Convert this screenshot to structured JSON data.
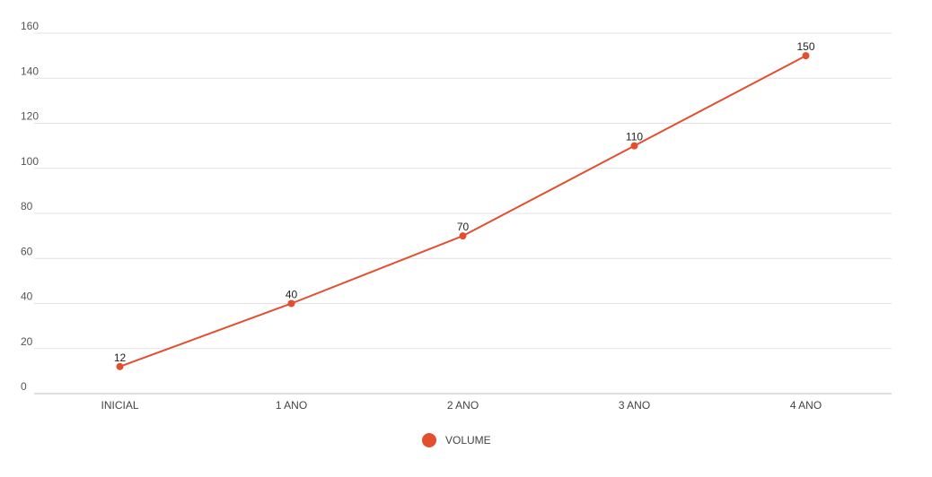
{
  "chart_data": {
    "type": "line",
    "categories": [
      "INICIAL",
      "1 ANO",
      "2 ANO",
      "3 ANO",
      "4 ANO"
    ],
    "series": [
      {
        "name": "VOLUME",
        "values": [
          12,
          40,
          70,
          110,
          150
        ],
        "color": "#E24E2E"
      }
    ],
    "yticks": [
      "0",
      "20",
      "40",
      "60",
      "80",
      "100",
      "120",
      "140",
      "160"
    ],
    "ylim": [
      0,
      160
    ],
    "grid": true,
    "legend": "bottom-center",
    "data_labels": true
  }
}
